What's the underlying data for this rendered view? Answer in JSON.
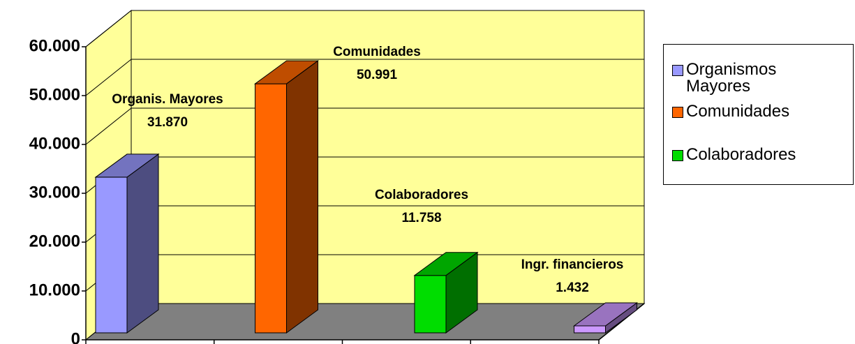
{
  "chart_data": {
    "type": "bar3d",
    "categories": [
      "Organis. Mayores",
      "Comunidades",
      "Colaboradores",
      "Ingr. financieros"
    ],
    "values": [
      31870,
      50991,
      11758,
      1432
    ],
    "value_labels": [
      "31.870",
      "50.991",
      "11.758",
      "1.432"
    ],
    "colors": [
      "#9999ff",
      "#ff6600",
      "#00dd00",
      "#cc99ff"
    ],
    "ylim": [
      0,
      60000
    ],
    "yticks": [
      {
        "value": 0,
        "label": "0"
      },
      {
        "value": 10000,
        "label": "10.000"
      },
      {
        "value": 20000,
        "label": "20.000"
      },
      {
        "value": 30000,
        "label": "30.000"
      },
      {
        "value": 40000,
        "label": "40.000"
      },
      {
        "value": 50000,
        "label": "50.000"
      },
      {
        "value": 60000,
        "label": "60.000"
      }
    ],
    "grid": true,
    "legend": [
      {
        "name": "Organismos Mayores",
        "color": "#9999ff"
      },
      {
        "name": "Comunidades",
        "color": "#ff6600"
      },
      {
        "name": "Colaboradores",
        "color": "#00dd00"
      }
    ]
  }
}
